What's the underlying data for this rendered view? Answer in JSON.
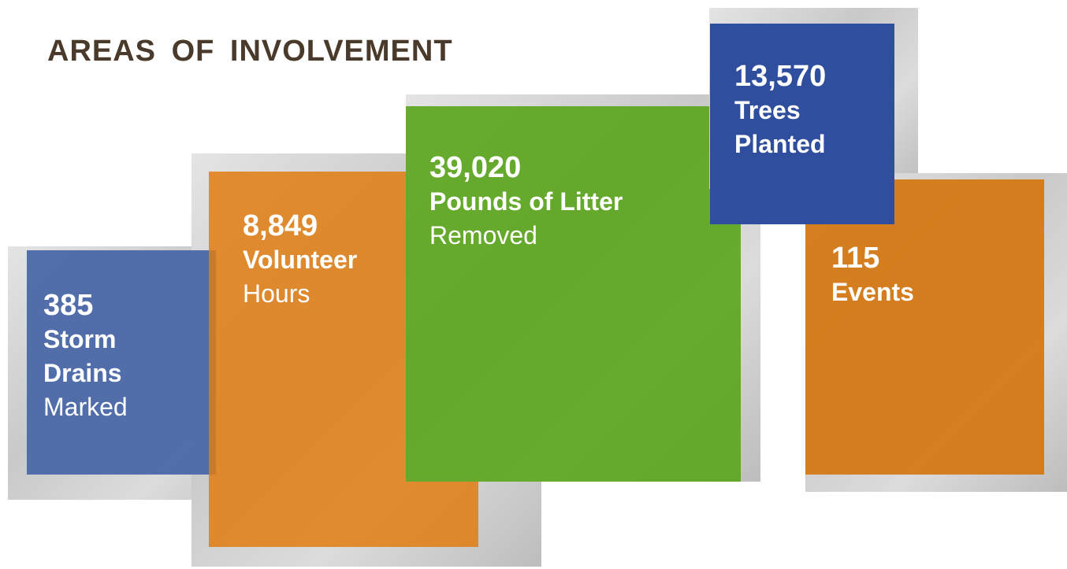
{
  "header": {
    "title": "AREAS OF INVOLVEMENT"
  },
  "items": [
    {
      "number": "385",
      "lines": [
        "Storm",
        "Drains"
      ],
      "light": "Marked"
    },
    {
      "number": "8,849",
      "lines": [
        "Volunteer"
      ],
      "light": "Hours"
    },
    {
      "number": "39,020",
      "lines": [
        "Pounds of Litter"
      ],
      "light": "Removed"
    },
    {
      "number": "13,570",
      "lines": [
        "Trees",
        "Planted"
      ]
    },
    {
      "number": "115",
      "lines": [
        "Events"
      ]
    }
  ]
}
